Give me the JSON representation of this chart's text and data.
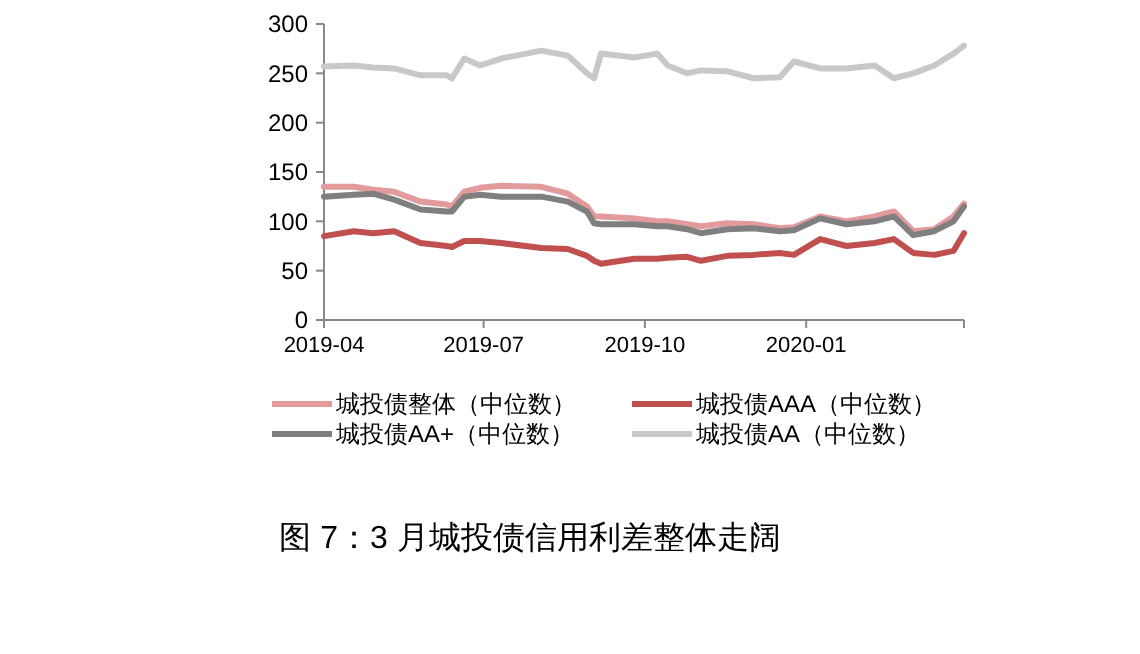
{
  "chart_data": {
    "type": "line",
    "title": "图 7：3 月城投债信用利差整体走阔",
    "x": [
      "2019-04-01",
      "2019-04-18",
      "2019-04-29",
      "2019-05-11",
      "2019-05-26",
      "2019-06-10",
      "2019-06-13",
      "2019-06-20",
      "2019-06-29",
      "2019-07-11",
      "2019-08-03",
      "2019-08-18",
      "2019-08-29",
      "2019-09-02",
      "2019-09-06",
      "2019-09-25",
      "2019-10-08",
      "2019-10-14",
      "2019-10-25",
      "2019-11-02",
      "2019-11-17",
      "2019-12-02",
      "2019-12-17",
      "2019-12-25",
      "2020-01-09",
      "2020-01-24",
      "2020-02-09",
      "2020-02-20",
      "2020-03-02",
      "2020-03-14",
      "2020-03-25",
      "2020-03-31"
    ],
    "series": [
      {
        "name": "城投债整体（中位数）",
        "color": "#e39a9a",
        "values": [
          135,
          135,
          132,
          130,
          120,
          117,
          115,
          130,
          134,
          136,
          135,
          128,
          115,
          105,
          105,
          103,
          100,
          100,
          97,
          95,
          98,
          97,
          93,
          94,
          105,
          100,
          105,
          110,
          90,
          92,
          105,
          118
        ]
      },
      {
        "name": "城投债AAA（中位数）",
        "color": "#c0504d",
        "values": [
          85,
          90,
          88,
          90,
          78,
          75,
          74,
          80,
          80,
          78,
          73,
          72,
          65,
          60,
          57,
          62,
          62,
          63,
          64,
          60,
          65,
          66,
          68,
          66,
          82,
          75,
          78,
          82,
          68,
          66,
          70,
          88
        ]
      },
      {
        "name": "城投债AA+（中位数）",
        "color": "#7f7f7f",
        "values": [
          125,
          127,
          128,
          122,
          112,
          110,
          110,
          125,
          127,
          125,
          125,
          120,
          110,
          98,
          97,
          97,
          95,
          95,
          92,
          88,
          92,
          93,
          90,
          91,
          103,
          97,
          100,
          105,
          86,
          90,
          100,
          115
        ]
      },
      {
        "name": "城投债AA（中位数）",
        "color": "#c8c8c8",
        "values": [
          257,
          258,
          256,
          255,
          248,
          248,
          245,
          265,
          258,
          265,
          273,
          268,
          250,
          245,
          270,
          266,
          270,
          258,
          250,
          253,
          252,
          245,
          246,
          262,
          255,
          255,
          258,
          245,
          250,
          258,
          270,
          278
        ]
      }
    ],
    "xlim": [
      "2019-04-01",
      "2020-03-31"
    ],
    "xticks": [
      {
        "value": "2019-04-01",
        "label": "2019-04"
      },
      {
        "value": "2019-07-01",
        "label": "2019-07"
      },
      {
        "value": "2019-10-01",
        "label": "2019-10"
      },
      {
        "value": "2020-01-01",
        "label": "2020-01"
      }
    ],
    "ylim": [
      0,
      300
    ],
    "yticks": [
      0,
      50,
      100,
      150,
      200,
      250,
      300
    ],
    "grid": false,
    "legend": "bottom",
    "marker": "none",
    "line_style": "solid"
  }
}
